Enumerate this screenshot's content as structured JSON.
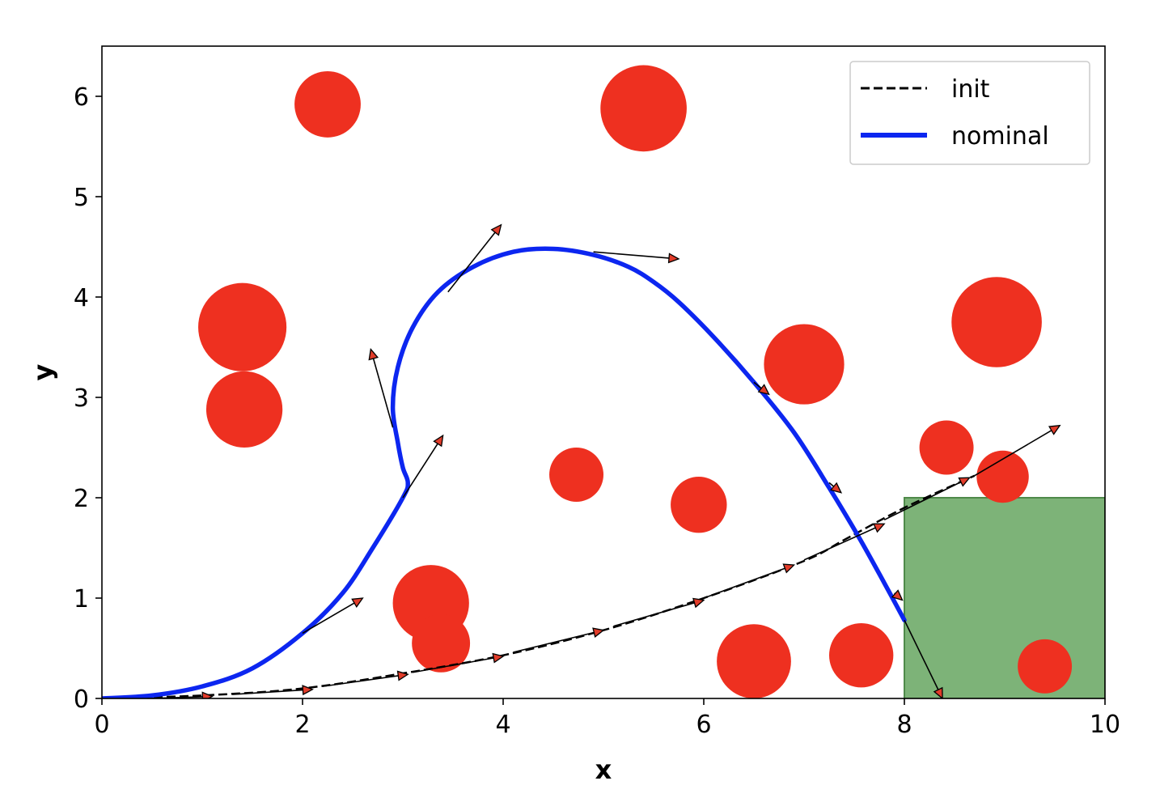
{
  "chart_data": {
    "type": "line",
    "title": "",
    "xlabel": "x",
    "ylabel": "y",
    "xlim": [
      0,
      10
    ],
    "ylim": [
      0,
      6.5
    ],
    "xticks": [
      "0",
      "2",
      "4",
      "6",
      "8",
      "10"
    ],
    "yticks": [
      "0",
      "1",
      "2",
      "3",
      "4",
      "5",
      "6"
    ],
    "grid": false,
    "legend_position": "upper right",
    "series": [
      {
        "name": "init",
        "style": "dashed",
        "color": "#000000",
        "x": [
          0,
          1,
          2,
          3,
          4,
          5,
          6,
          7,
          7.4,
          8,
          8.7
        ],
        "y": [
          0,
          0.03,
          0.1,
          0.25,
          0.43,
          0.68,
          1.0,
          1.37,
          1.58,
          1.9,
          2.22
        ]
      },
      {
        "name": "nominal",
        "style": "solid",
        "color": "#0c26f0",
        "x": [
          0,
          0.5,
          1.0,
          1.5,
          2.0,
          2.4,
          2.7,
          3.0,
          3.05,
          3.0,
          2.95,
          2.9,
          2.95,
          3.1,
          3.35,
          3.7,
          4.1,
          4.5,
          4.9,
          5.25,
          5.5,
          5.75,
          6.1,
          6.5,
          6.9,
          7.25,
          7.55,
          7.8,
          8.0
        ],
        "y": [
          0,
          0.03,
          0.12,
          0.3,
          0.65,
          1.05,
          1.5,
          2.0,
          2.15,
          2.3,
          2.55,
          2.9,
          3.3,
          3.7,
          4.05,
          4.3,
          4.45,
          4.48,
          4.42,
          4.3,
          4.15,
          3.95,
          3.6,
          3.15,
          2.65,
          2.1,
          1.6,
          1.15,
          0.78
        ]
      }
    ],
    "obstacles": [
      {
        "x": 2.25,
        "y": 5.92,
        "r": 0.33
      },
      {
        "x": 5.4,
        "y": 5.88,
        "r": 0.43
      },
      {
        "x": 1.4,
        "y": 3.7,
        "r": 0.44
      },
      {
        "x": 1.42,
        "y": 2.88,
        "r": 0.38
      },
      {
        "x": 4.73,
        "y": 2.23,
        "r": 0.27
      },
      {
        "x": 5.95,
        "y": 1.93,
        "r": 0.28
      },
      {
        "x": 7.0,
        "y": 3.33,
        "r": 0.4
      },
      {
        "x": 3.28,
        "y": 0.95,
        "r": 0.38
      },
      {
        "x": 3.38,
        "y": 0.55,
        "r": 0.29
      },
      {
        "x": 6.5,
        "y": 0.37,
        "r": 0.37
      },
      {
        "x": 7.57,
        "y": 0.43,
        "r": 0.32
      },
      {
        "x": 8.42,
        "y": 2.5,
        "r": 0.27
      },
      {
        "x": 8.98,
        "y": 2.21,
        "r": 0.26
      },
      {
        "x": 8.92,
        "y": 3.75,
        "r": 0.45
      },
      {
        "x": 9.4,
        "y": 0.32,
        "r": 0.27
      }
    ],
    "goal_region": {
      "x0": 8,
      "x1": 10,
      "y0": 0,
      "y1": 2
    },
    "arrows": [
      {
        "x0": 0.45,
        "y0": 0.0,
        "x1": 1.1,
        "y1": 0.02
      },
      {
        "x0": 1.3,
        "y0": 0.04,
        "x1": 2.1,
        "y1": 0.09
      },
      {
        "x0": 2.2,
        "y0": 0.12,
        "x1": 3.05,
        "y1": 0.24
      },
      {
        "x0": 3.1,
        "y0": 0.26,
        "x1": 4.0,
        "y1": 0.42
      },
      {
        "x0": 4.1,
        "y0": 0.46,
        "x1": 5.0,
        "y1": 0.68
      },
      {
        "x0": 5.1,
        "y0": 0.72,
        "x1": 6.0,
        "y1": 0.98
      },
      {
        "x0": 6.0,
        "y0": 1.0,
        "x1": 6.9,
        "y1": 1.33
      },
      {
        "x0": 7.0,
        "y0": 1.38,
        "x1": 7.8,
        "y1": 1.74
      },
      {
        "x0": 7.8,
        "y0": 1.78,
        "x1": 8.65,
        "y1": 2.2
      },
      {
        "x0": 8.7,
        "y0": 2.22,
        "x1": 9.55,
        "y1": 2.72
      },
      {
        "x0": 2.0,
        "y0": 0.65,
        "x1": 2.6,
        "y1": 1.0
      },
      {
        "x0": 3.0,
        "y0": 2.0,
        "x1": 3.4,
        "y1": 2.62
      },
      {
        "x0": 2.9,
        "y0": 2.7,
        "x1": 2.68,
        "y1": 3.48
      },
      {
        "x0": 3.45,
        "y0": 4.05,
        "x1": 3.98,
        "y1": 4.72
      },
      {
        "x0": 4.9,
        "y0": 4.45,
        "x1": 5.75,
        "y1": 4.38
      },
      {
        "x0": 6.5,
        "y0": 3.15,
        "x1": 6.65,
        "y1": 3.03
      },
      {
        "x0": 7.25,
        "y0": 2.15,
        "x1": 7.37,
        "y1": 2.05
      },
      {
        "x0": 7.9,
        "y0": 1.05,
        "x1": 7.98,
        "y1": 0.98
      },
      {
        "x0": 8.0,
        "y0": 0.78,
        "x1": 8.38,
        "y1": 0.0
      }
    ]
  },
  "colors": {
    "obstacle": "#ee3020",
    "goal_region": "#7db378",
    "goal_edge": "#4f8a4a",
    "arrow_head": "#e13c2a",
    "nominal": "#0c26f0",
    "init": "#000000"
  }
}
